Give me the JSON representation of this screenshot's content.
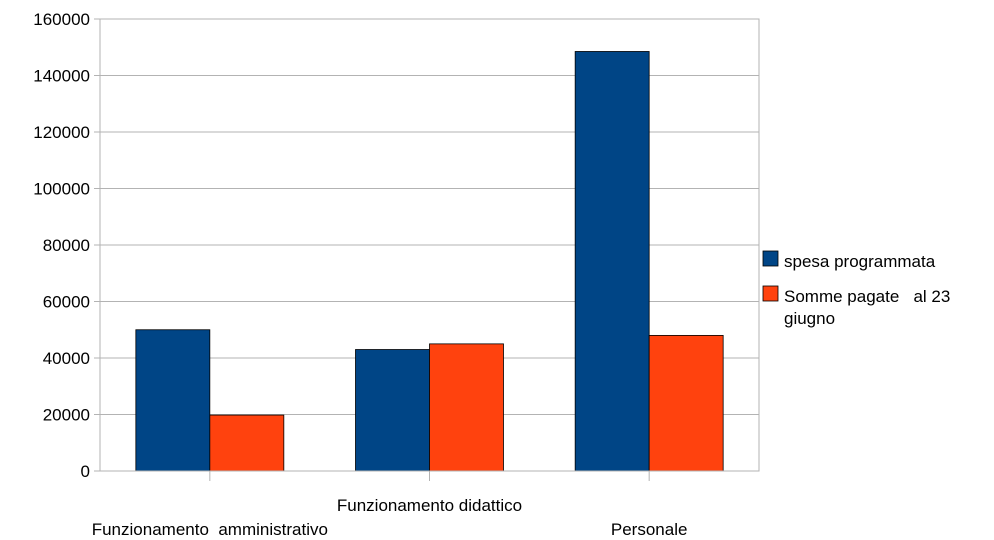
{
  "chart_data": {
    "type": "bar",
    "categories": [
      "Funzionamento  amministrativo",
      "Funzionamento didattico",
      "Personale"
    ],
    "series": [
      {
        "name": "spesa programmata",
        "color": "#004586",
        "values": [
          50000,
          43000,
          148500
        ]
      },
      {
        "name": "Somme pagate   al 23 giugno",
        "color": "#ff420e",
        "values": [
          19800,
          45000,
          48000
        ]
      }
    ],
    "yticks": [
      "0",
      "20000",
      "40000",
      "60000",
      "80000",
      "100000",
      "120000",
      "140000",
      "160000"
    ],
    "ylim": [
      0,
      160000
    ],
    "grid": true,
    "legend": {
      "position": "right",
      "entries": [
        {
          "lines": [
            "spesa programmata"
          ]
        },
        {
          "lines": [
            "Somme pagate   al 23",
            "giugno"
          ]
        }
      ]
    }
  }
}
